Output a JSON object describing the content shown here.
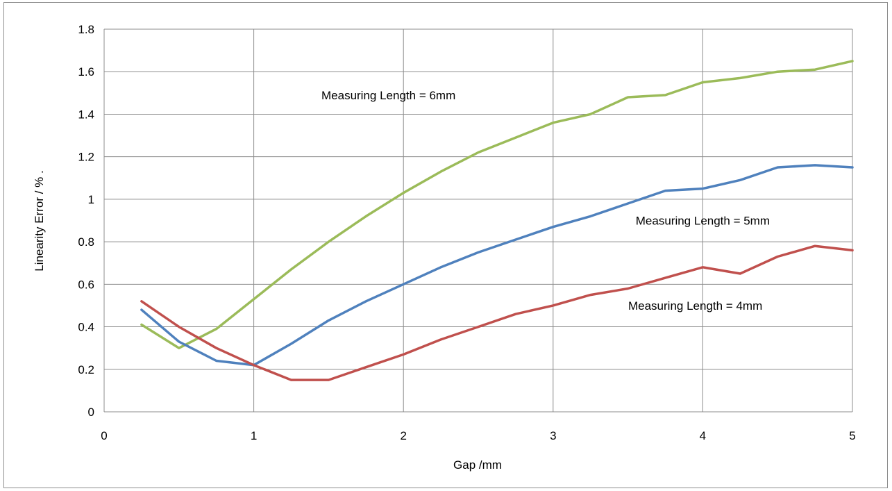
{
  "chart_data": {
    "type": "line",
    "xlabel": "Gap /mm",
    "ylabel": "Linearity Error / % .",
    "xlim": [
      0,
      5
    ],
    "ylim": [
      0,
      1.8
    ],
    "xticks": [
      0,
      1,
      2,
      3,
      4,
      5
    ],
    "yticks": [
      0,
      0.2,
      0.4,
      0.6,
      0.8,
      1,
      1.2,
      1.4,
      1.6,
      1.8
    ],
    "grid": true,
    "x": [
      0.25,
      0.5,
      0.75,
      1,
      1.25,
      1.5,
      1.75,
      2,
      2.25,
      2.5,
      2.75,
      3,
      3.25,
      3.5,
      3.75,
      4,
      4.25,
      4.5,
      4.75,
      5
    ],
    "series": [
      {
        "color": "#9bbb59",
        "values": [
          0.41,
          0.3,
          0.39,
          0.53,
          0.67,
          0.8,
          0.92,
          1.03,
          1.13,
          1.22,
          1.29,
          1.36,
          1.4,
          1.48,
          1.49,
          1.55,
          1.57,
          1.6,
          1.61,
          1.65
        ]
      },
      {
        "color": "#4f81bd",
        "values": [
          0.48,
          0.33,
          0.24,
          0.22,
          0.32,
          0.43,
          0.52,
          0.6,
          0.68,
          0.75,
          0.81,
          0.87,
          0.92,
          0.98,
          1.04,
          1.05,
          1.09,
          1.15,
          1.16,
          1.15
        ]
      },
      {
        "color": "#c0504d",
        "values": [
          0.52,
          0.4,
          0.3,
          0.22,
          0.15,
          0.15,
          0.21,
          0.27,
          0.34,
          0.4,
          0.46,
          0.5,
          0.55,
          0.58,
          0.63,
          0.68,
          0.65,
          0.73,
          0.78,
          0.76
        ]
      }
    ],
    "annotations": [
      {
        "text": "Measuring Length = 6mm",
        "x": 1.9,
        "y": 1.47
      },
      {
        "text": "Measuring Length = 5mm",
        "x": 4.0,
        "y": 0.88
      },
      {
        "text": "Measuring Length = 4mm",
        "x": 3.95,
        "y": 0.48
      }
    ]
  }
}
